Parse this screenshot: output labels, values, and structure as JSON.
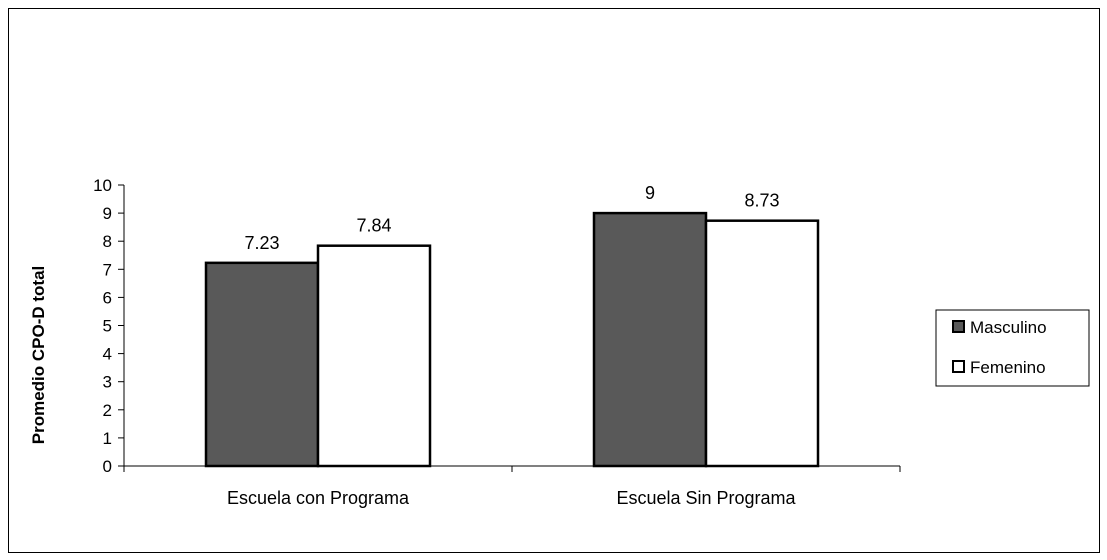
{
  "chart_data": {
    "type": "bar",
    "categories": [
      "Escuela con Programa",
      "Escuela Sin Programa"
    ],
    "series": [
      {
        "name": "Masculino",
        "values": [
          7.23,
          9
        ],
        "labels": [
          "7.23",
          "9"
        ],
        "color": "#595959"
      },
      {
        "name": "Femenino",
        "values": [
          7.84,
          8.73
        ],
        "labels": [
          "7.84",
          "8.73"
        ],
        "color": "#ffffff"
      }
    ],
    "ylabel": "Promedio CPO-D total",
    "xlabel": "",
    "ylim": [
      0,
      10
    ],
    "yticks": [
      "0",
      "1",
      "2",
      "3",
      "4",
      "5",
      "6",
      "7",
      "8",
      "9",
      "10"
    ],
    "grid": false,
    "legend_position": "right"
  }
}
